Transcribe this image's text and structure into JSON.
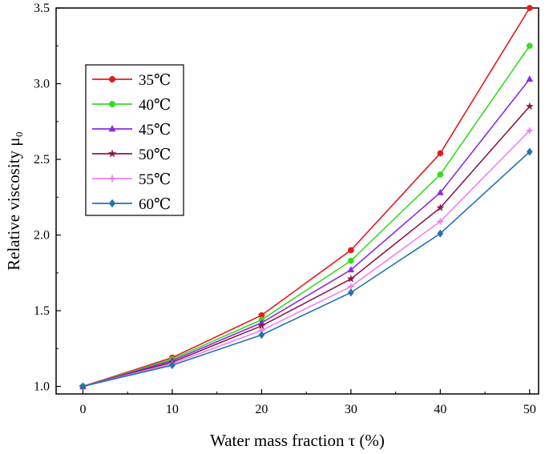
{
  "chart_data": {
    "type": "line",
    "title": "",
    "xlabel": "Water mass fraction τ (%)",
    "ylabel": "Relative viscosity μ₀",
    "xlim": [
      -3,
      51
    ],
    "ylim": [
      0.95,
      3.5
    ],
    "x": [
      0,
      10,
      20,
      30,
      40,
      50
    ],
    "x_ticks": [
      "0",
      "10",
      "20",
      "30",
      "40",
      "50"
    ],
    "y_ticks": [
      "1.0",
      "1.5",
      "2.0",
      "2.5",
      "3.0",
      "3.5"
    ],
    "legend_position": "upper-left",
    "series": [
      {
        "name": "35℃",
        "color": "#e8191c",
        "marker": "circle",
        "values": [
          1.0,
          1.19,
          1.47,
          1.9,
          2.54,
          3.5
        ]
      },
      {
        "name": "40℃",
        "color": "#33dd22",
        "marker": "circle",
        "values": [
          1.0,
          1.18,
          1.44,
          1.83,
          2.4,
          3.25
        ]
      },
      {
        "name": "45℃",
        "color": "#8a2be2",
        "marker": "triangle",
        "values": [
          1.0,
          1.17,
          1.42,
          1.77,
          2.28,
          3.03
        ]
      },
      {
        "name": "50℃",
        "color": "#8b1a4a",
        "marker": "star",
        "values": [
          1.0,
          1.16,
          1.4,
          1.71,
          2.18,
          2.85
        ]
      },
      {
        "name": "55℃",
        "color": "#ee82ee",
        "marker": "star4",
        "values": [
          1.0,
          1.15,
          1.37,
          1.66,
          2.09,
          2.69
        ]
      },
      {
        "name": "60℃",
        "color": "#2272b4",
        "marker": "diamond",
        "values": [
          1.0,
          1.14,
          1.34,
          1.62,
          2.01,
          2.55
        ]
      }
    ]
  }
}
